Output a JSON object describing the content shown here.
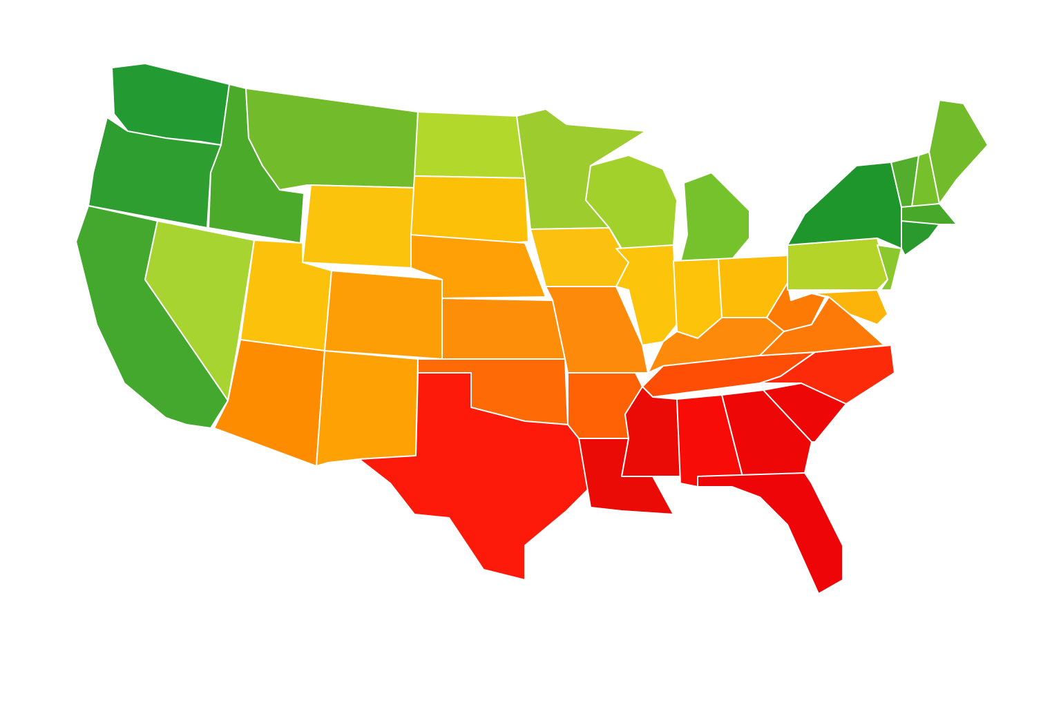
{
  "map": {
    "fills": [
      "#239a32",
      "#2f9e30",
      "#45a82e",
      "#4caa2a",
      "#a8d432",
      "#72bc2c",
      "#fcc30c",
      "#fcc10a",
      "#fd8c00",
      "#fe9e06",
      "#fea105",
      "#b2d82c",
      "#fcc008",
      "#fea006",
      "#fd8e0a",
      "#fe6a05",
      "#fd1a0a",
      "#9ccc2e",
      "#fcc010",
      "#fd8a0a",
      "#fe6205",
      "#ea0b07",
      "#a3d12c",
      "#76c22c",
      "#fcc40a",
      "#fdc30a",
      "#fdbc08",
      "#fd8a0a",
      "#fe4e05",
      "#ea0b07",
      "#f70c08",
      "#ee0707",
      "#ee0508",
      "#ee0707",
      "#fd2a0a",
      "#fe7a08",
      "#fd7a05",
      "#b4d42a",
      "#1f962c",
      "#8ac82e",
      "#fdb40a",
      "#52ae2c",
      "#76c02c",
      "#72bc2c",
      "#48a82a",
      "#2a9a2e"
    ]
  }
}
